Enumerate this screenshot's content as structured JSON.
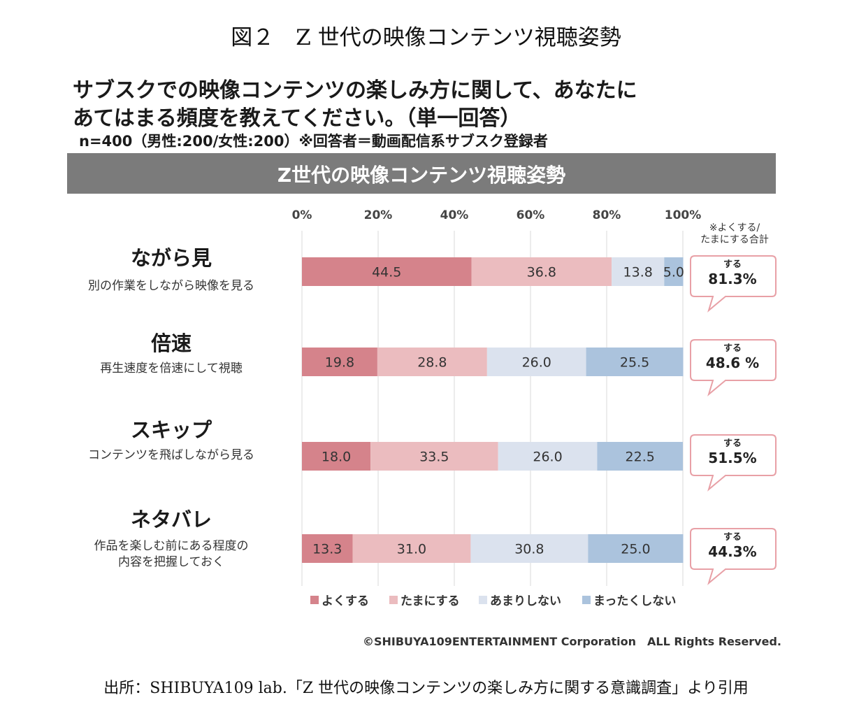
{
  "figure_title": "図２　Z 世代の映像コンテンツ視聴姿勢",
  "question_line1": "サブスクでの映像コンテンツの楽しみ方に関して、あなたに",
  "question_line2": "あてはまる頻度を教えてください。（単一回答）",
  "sample_note": "n=400（男性:200/女性:200）※回答者＝動画配信系サブスク登録者",
  "banner": "Z世代の映像コンテンツ視聴姿勢",
  "total_note_line1": "※よくする/",
  "total_note_line2": "たまにする合計",
  "categories": [
    {
      "label": "ながら見",
      "sub": [
        "別の作業をしながら映像を見る"
      ]
    },
    {
      "label": "倍速",
      "sub": [
        "再生速度を倍速にして視聴"
      ]
    },
    {
      "label": "スキップ",
      "sub": [
        "コンテンツを飛ばしながら見る"
      ]
    },
    {
      "label": "ネタバレ",
      "sub": [
        "作品を楽しむ前にある程度の",
        "内容を把握しておく"
      ]
    }
  ],
  "callouts": [
    {
      "top": "する",
      "value": "81.3%"
    },
    {
      "top": "する",
      "value": "48.6 %"
    },
    {
      "top": "する",
      "value": "51.5%"
    },
    {
      "top": "する",
      "value": "44.3%"
    }
  ],
  "credit": "©SHIBUYA109ENTERTAINMENT Corporation　ALL Rights Reserved.",
  "source": "出所：SHIBUYA109 lab.「Z 世代の映像コンテンツの楽しみ方に関する意識調査」より引用",
  "colors": {
    "often": "#d5838b",
    "sometimes": "#ebbcbf",
    "rarely": "#dbe2ee",
    "never": "#abc3dd",
    "banner": "#7b7b7b",
    "callout_border": "#e8a0a6"
  },
  "chart_data": {
    "type": "bar",
    "orientation": "horizontal-stacked-100",
    "x_ticks": [
      "0%",
      "20%",
      "40%",
      "60%",
      "80%",
      "100%"
    ],
    "xlim": [
      0,
      100
    ],
    "categories": [
      "ながら見",
      "倍速",
      "スキップ",
      "ネタバレ"
    ],
    "series": [
      {
        "name": "よくする",
        "values": [
          44.5,
          19.8,
          18.0,
          13.3
        ],
        "labels": [
          "44.5",
          "19.8",
          "18.0",
          "13.3"
        ]
      },
      {
        "name": "たまにする",
        "values": [
          36.8,
          28.8,
          33.5,
          31.0
        ],
        "labels": [
          "36.8",
          "28.8",
          "33.5",
          "31.0"
        ]
      },
      {
        "name": "あまりしない",
        "values": [
          13.8,
          26.0,
          26.0,
          30.8
        ],
        "labels": [
          "13.8",
          "26.0",
          "26.0",
          "30.8"
        ]
      },
      {
        "name": "まったくしない",
        "values": [
          5.0,
          25.5,
          22.5,
          25.0
        ],
        "labels": [
          "5.0",
          "25.5",
          "22.5",
          "25.0"
        ]
      }
    ],
    "legend_position": "bottom"
  }
}
